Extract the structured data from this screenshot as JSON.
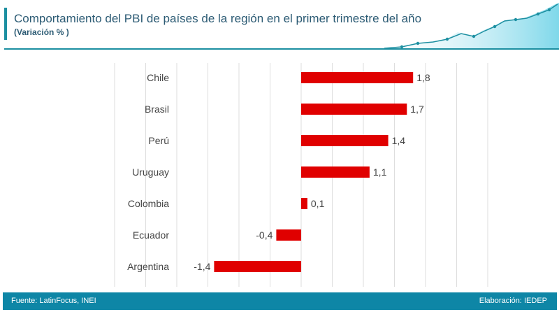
{
  "header": {
    "title": "Comportamiento del PBI de países de la región en el primer trimestre del año",
    "subtitle": "(Variación % )"
  },
  "footer": {
    "source": "Fuente: LatinFocus, INEI",
    "credit": "Elaboración: IEDEP"
  },
  "colors": {
    "bar": "#e00000",
    "accent": "#1c8fa1",
    "footer": "#0e86a6",
    "title": "#2c5b74"
  },
  "chart_data": {
    "type": "bar",
    "orientation": "horizontal",
    "categories": [
      "Chile",
      "Brasil",
      "Perú",
      "Uruguay",
      "Colombia",
      "Ecuador",
      "Argentina"
    ],
    "values": [
      1.8,
      1.7,
      1.4,
      1.1,
      0.1,
      -0.4,
      -1.4
    ],
    "labels": [
      "1,8",
      "1,7",
      "1,4",
      "1,1",
      "0,1",
      "-0,4",
      "-1,4"
    ],
    "xlim": [
      -3,
      3
    ],
    "grid": true,
    "legend": "none"
  }
}
